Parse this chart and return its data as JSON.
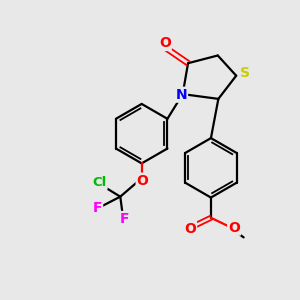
{
  "bg_color": "#e8e8e8",
  "bond_color": "#000000",
  "atom_colors": {
    "O": "#ff0000",
    "N": "#0000ff",
    "S": "#cccc00",
    "Cl": "#00bb00",
    "F": "#ff00ff",
    "C": "#000000"
  }
}
